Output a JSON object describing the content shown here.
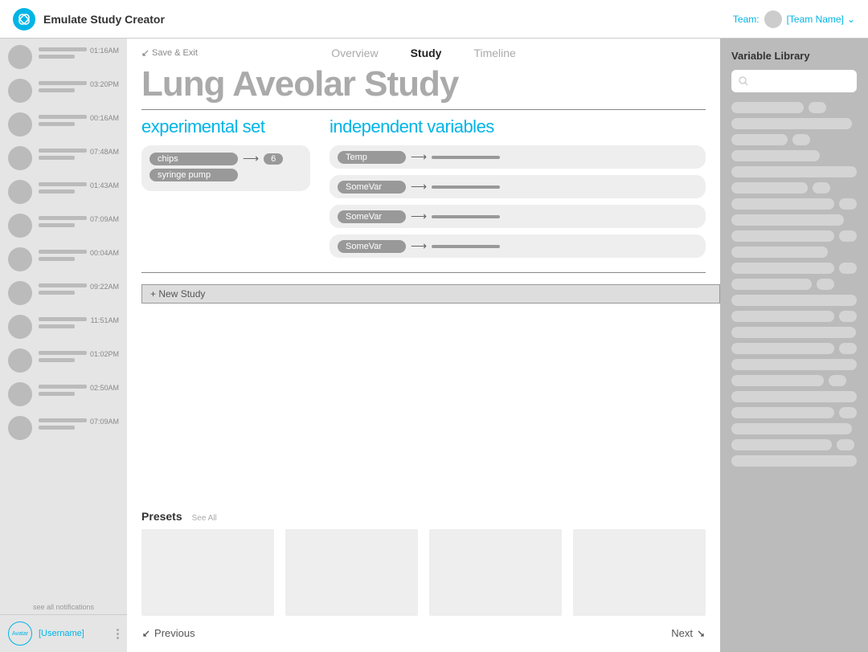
{
  "header": {
    "app_title": "Emulate Study Creator",
    "team_label": "Team:",
    "team_name": "[Team Name]"
  },
  "sidebar": {
    "notifications": [
      {
        "time": "01:16AM"
      },
      {
        "time": "03:20PM"
      },
      {
        "time": "00:16AM"
      },
      {
        "time": "07:48AM"
      },
      {
        "time": "01:43AM"
      },
      {
        "time": "07:09AM"
      },
      {
        "time": "00:04AM"
      },
      {
        "time": "09:22AM"
      },
      {
        "time": "11:51AM"
      },
      {
        "time": "01:02PM"
      },
      {
        "time": "02:50AM"
      },
      {
        "time": "07:09AM"
      }
    ],
    "see_all": "see all notifications",
    "user_avatar_text": "Avatar",
    "username": "[Username]"
  },
  "tabs": {
    "save_exit": "Save & Exit",
    "overview": "Overview",
    "study": "Study",
    "timeline": "Timeline"
  },
  "study": {
    "title": "Lung Aveolar Study",
    "exp_heading": "experimental set",
    "vars_heading": "independent variables",
    "exp_chips": {
      "label": "chips",
      "count": "6"
    },
    "exp_syringe": {
      "label": "syringe pump"
    },
    "variables": [
      {
        "label": "Temp"
      },
      {
        "label": "SomeVar"
      },
      {
        "label": "SomeVar"
      },
      {
        "label": "SomeVar"
      }
    ],
    "new_study_btn": "+ New Study"
  },
  "presets": {
    "title": "Presets",
    "see_all": "See All",
    "cards": [
      1,
      2,
      3,
      4
    ]
  },
  "nav": {
    "previous": "Previous",
    "next": "Next"
  },
  "library": {
    "title": "Variable Library",
    "rows": [
      {
        "w1": 90,
        "dot": true
      },
      {
        "w1": 150
      },
      {
        "w1": 70,
        "dot": true
      },
      {
        "w1": 110
      },
      {
        "w1": 160
      },
      {
        "w1": 95,
        "dot": true
      },
      {
        "w1": 180,
        "dot": true
      },
      {
        "w1": 140
      },
      {
        "w1": 170,
        "dot": true
      },
      {
        "w1": 120
      },
      {
        "w1": 175,
        "dot": true
      },
      {
        "w1": 100,
        "dot": true
      },
      {
        "w1": 165
      },
      {
        "w1": 130,
        "dot": true
      },
      {
        "w1": 155
      },
      {
        "w1": 145,
        "dot": true
      },
      {
        "w1": 170
      },
      {
        "w1": 115,
        "dot": true
      },
      {
        "w1": 160
      },
      {
        "w1": 135,
        "dot": true
      },
      {
        "w1": 150
      },
      {
        "w1": 125,
        "dot": true
      },
      {
        "w1": 165
      }
    ]
  },
  "colors": {
    "accent": "#00b4e6",
    "grey_bg": "#e5e5e5",
    "grey_pill": "#999",
    "right_bg": "#bbb",
    "right_item": "#d4d4d4"
  }
}
